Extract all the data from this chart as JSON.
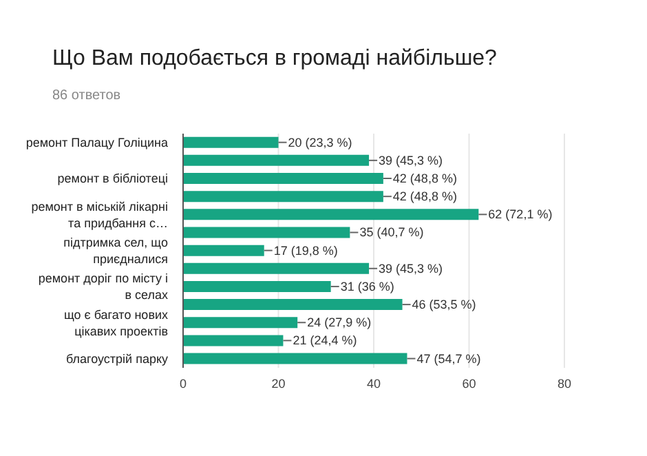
{
  "chart_data": {
    "type": "bar",
    "orientation": "horizontal",
    "title": "Що Вам подобається в громаді найбільше?",
    "subtitle": "86 ответов",
    "categories": [
      "ремонт Палацу Голіцина",
      null,
      "ремонт в бібліотеці",
      null,
      "ремонт в міській лікарні та придбання с…",
      null,
      "підтримка сел, що приєдналися",
      null,
      "ремонт доріг по місту і в селах",
      null,
      "що є багато нових цікавих проектів",
      null,
      "благоустрій парку"
    ],
    "values": [
      20,
      39,
      42,
      42,
      62,
      35,
      17,
      39,
      31,
      46,
      24,
      21,
      47
    ],
    "value_labels": [
      "20 (23,3 %)",
      "39 (45,3 %)",
      "42 (48,8 %)",
      "42 (48,8 %)",
      "62 (72,1 %)",
      "35 (40,7 %)",
      "17 (19,8 %)",
      "39 (45,3 %)",
      "31 (36 %)",
      "46 (53,5 %)",
      "24 (27,9 %)",
      "21 (24,4 %)",
      "47 (54,7 %)"
    ],
    "color": "#17a583",
    "xlim": [
      0,
      80
    ],
    "xticks": [
      0,
      20,
      40,
      60,
      80
    ],
    "grid": "x"
  }
}
